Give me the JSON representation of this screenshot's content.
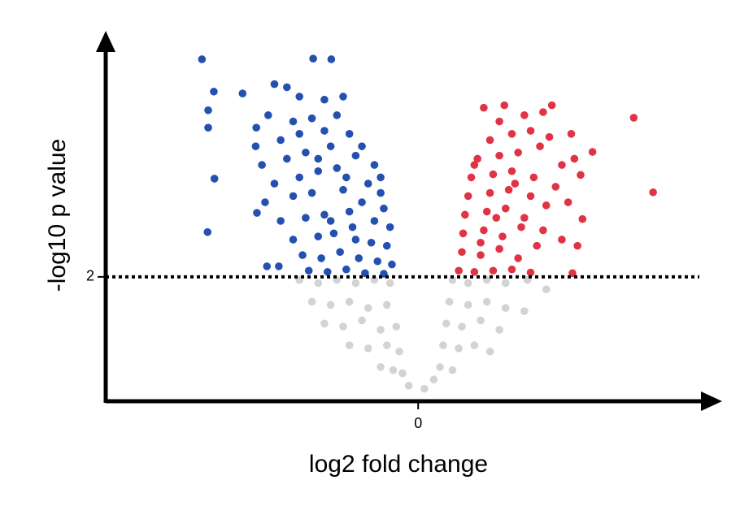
{
  "chart_data": {
    "type": "scatter",
    "xlabel": "log2 fold change",
    "ylabel": "-log10 p value",
    "xlim": [
      -5,
      4.5
    ],
    "ylim": [
      0,
      5.8
    ],
    "xticks": [
      0
    ],
    "yticks": [
      2
    ],
    "grid": true,
    "series": [
      {
        "color": "#2451b0",
        "x": [
          -3.46,
          -3.27,
          -3.36,
          -3.36,
          -3.26,
          -3.37,
          -2.81,
          -1.68,
          -1.39,
          -2.59,
          -2.42,
          -2.23,
          -2.58,
          -2.3,
          -2.1,
          -1.9,
          -1.5,
          -1.2,
          -2.4,
          -2.0,
          -1.7,
          -1.3,
          -2.6,
          -2.2,
          -1.9,
          -1.5,
          -1.1,
          -0.9,
          -2.5,
          -2.1,
          -1.8,
          -1.4,
          -1.0,
          -0.7,
          -2.3,
          -1.9,
          -1.6,
          -1.3,
          -0.8,
          -0.6,
          -2.45,
          -2.0,
          -1.7,
          -1.2,
          -0.9,
          -0.55,
          -2.2,
          -1.8,
          -1.5,
          -1.1,
          -0.7,
          -0.45,
          -2.0,
          -1.6,
          -1.35,
          -1.0,
          -0.75,
          -0.5,
          -1.85,
          -1.55,
          -1.25,
          -0.95,
          -0.65,
          -0.42,
          -1.75,
          -1.45,
          -1.15,
          -0.85,
          -0.55,
          -1.6,
          -1.15,
          -1.4,
          -1.05,
          -0.6
        ],
        "values": [
          5.5,
          4.98,
          4.68,
          4.4,
          3.58,
          2.72,
          4.95,
          5.51,
          5.5,
          4.4,
          2.17,
          2.17,
          3.03,
          5.1,
          5.05,
          4.9,
          4.85,
          4.9,
          4.6,
          4.5,
          4.55,
          4.6,
          4.1,
          4.2,
          4.3,
          4.35,
          4.3,
          4.1,
          3.8,
          3.9,
          4.0,
          4.1,
          3.95,
          3.8,
          3.5,
          3.6,
          3.7,
          3.75,
          3.5,
          3.6,
          3.2,
          3.3,
          3.35,
          3.4,
          3.2,
          3.1,
          2.9,
          2.95,
          3.0,
          3.05,
          2.9,
          2.8,
          2.6,
          2.65,
          2.7,
          2.6,
          2.55,
          2.5,
          2.35,
          2.3,
          2.4,
          2.3,
          2.25,
          2.2,
          2.1,
          2.08,
          2.12,
          2.06,
          2.05,
          3.9,
          3.6,
          2.9,
          2.8,
          3.35
        ]
      },
      {
        "color": "#e03445",
        "x": [
          3.45,
          3.76,
          2.79,
          1.05,
          1.38,
          2.14,
          2.47,
          2.6,
          2.63,
          0.65,
          0.9,
          1.2,
          1.5,
          1.8,
          0.7,
          1.0,
          1.3,
          1.6,
          1.9,
          0.72,
          1.05,
          1.35,
          1.65,
          2.0,
          2.3,
          0.75,
          1.1,
          1.4,
          1.7,
          2.05,
          0.8,
          1.15,
          1.45,
          1.8,
          2.2,
          0.85,
          1.2,
          1.5,
          1.85,
          2.3,
          0.95,
          1.3,
          1.6,
          1.95,
          1.15,
          1.5,
          1.8,
          2.1,
          1.3,
          1.7,
          2.0,
          2.45,
          2.5,
          2.4,
          2.55,
          1.0,
          1.25,
          1.55,
          0.9
        ],
        "values": [
          4.56,
          3.36,
          4.01,
          4.72,
          4.76,
          4.76,
          2.06,
          3.64,
          2.93,
          2.1,
          2.08,
          2.1,
          2.12,
          2.07,
          2.4,
          2.35,
          2.45,
          2.3,
          2.5,
          2.7,
          2.75,
          2.65,
          2.8,
          2.75,
          2.6,
          3.0,
          3.05,
          3.1,
          2.95,
          3.15,
          3.3,
          3.35,
          3.4,
          3.3,
          3.45,
          3.6,
          3.65,
          3.7,
          3.6,
          3.8,
          3.9,
          3.95,
          4.0,
          4.1,
          4.2,
          4.3,
          4.35,
          4.25,
          4.5,
          4.6,
          4.65,
          4.3,
          3.9,
          3.2,
          2.5,
          2.55,
          2.95,
          3.5,
          3.8
        ]
      },
      {
        "color": "#d3d3d3",
        "x": [
          -1.9,
          -1.6,
          -1.3,
          -1.0,
          -0.7,
          -0.45,
          -1.7,
          -1.4,
          -1.1,
          -0.8,
          -0.5,
          -1.5,
          -1.2,
          -0.9,
          -0.6,
          -0.35,
          -1.1,
          -0.8,
          -0.5,
          -0.3,
          -0.6,
          -0.4,
          -0.25,
          -0.15,
          0.55,
          0.8,
          1.1,
          1.4,
          1.75,
          2.05,
          0.5,
          0.8,
          1.1,
          1.4,
          1.7,
          0.45,
          0.7,
          1.0,
          1.3,
          0.4,
          0.65,
          0.9,
          1.15,
          0.35,
          0.55,
          0.25,
          0.1
        ],
        "values": [
          1.95,
          1.9,
          1.95,
          1.9,
          1.95,
          1.9,
          1.6,
          1.55,
          1.6,
          1.5,
          1.55,
          1.25,
          1.2,
          1.3,
          1.15,
          1.2,
          0.9,
          0.85,
          0.9,
          0.8,
          0.55,
          0.5,
          0.45,
          0.25,
          1.95,
          1.9,
          1.95,
          1.9,
          1.95,
          1.8,
          1.6,
          1.55,
          1.6,
          1.5,
          1.45,
          1.25,
          1.2,
          1.3,
          1.15,
          0.9,
          0.85,
          0.9,
          0.8,
          0.55,
          0.5,
          0.35,
          0.2
        ]
      }
    ]
  }
}
